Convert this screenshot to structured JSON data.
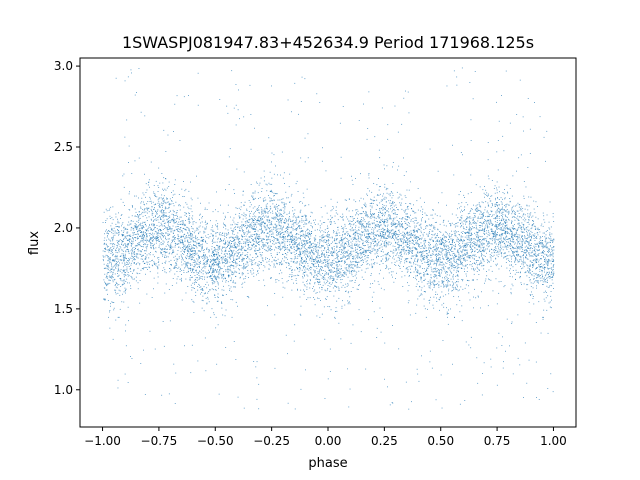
{
  "chart_data": {
    "type": "scatter",
    "title": "1SWASPJ081947.83+452634.9 Period 171968.125s",
    "xlabel": "phase",
    "ylabel": "flux",
    "xlim": [
      -1.1,
      1.1
    ],
    "ylim": [
      0.77,
      3.05
    ],
    "x_ticks": [
      -1.0,
      -0.75,
      -0.5,
      -0.25,
      0.0,
      0.25,
      0.5,
      0.75,
      1.0
    ],
    "x_tick_labels": [
      "−1.00",
      "−0.75",
      "−0.50",
      "−0.25",
      "0.00",
      "0.25",
      "0.50",
      "0.75",
      "1.00"
    ],
    "y_ticks": [
      1.0,
      1.5,
      2.0,
      2.5,
      3.0
    ],
    "y_tick_labels": [
      "1.0",
      "1.5",
      "2.0",
      "2.5",
      "3.0"
    ],
    "grid": false,
    "legend": "none",
    "marker_color": "#1f77b4",
    "series": [
      {
        "phase_range": [
          -1.0,
          1.0
        ],
        "period_in_phase": 1.0,
        "baseline_flux": 1.8,
        "peak_flux": 2.0,
        "peak_phases": [
          -0.75,
          -0.25,
          0.25,
          0.75
        ],
        "core_flux_range": [
          1.55,
          2.3
        ],
        "outlier_flux_range": [
          0.88,
          3.0
        ]
      }
    ]
  }
}
